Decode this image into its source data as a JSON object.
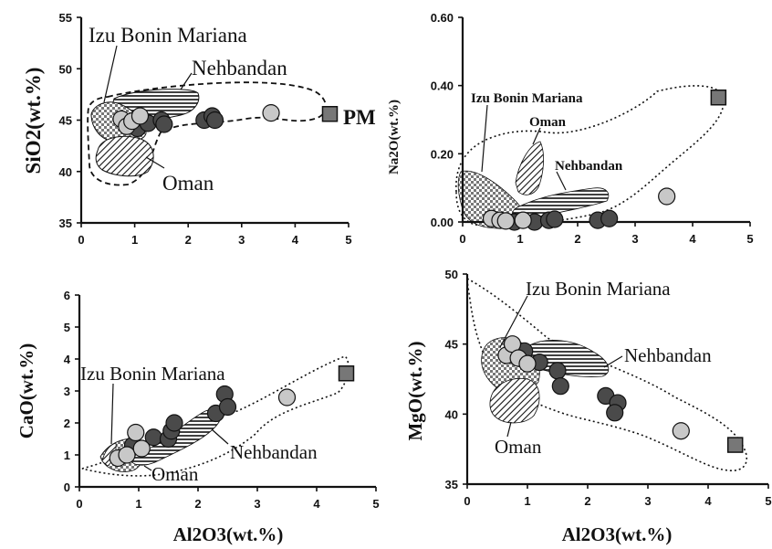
{
  "chart_data": [
    {
      "type": "scatter",
      "xlabel": "",
      "ylabel": "SiO2(wt.%)",
      "xlim": [
        0,
        5
      ],
      "ylim": [
        35,
        55
      ],
      "xticks": [
        "0",
        "1",
        "2",
        "3",
        "4",
        "5"
      ],
      "yticks": [
        "35",
        "40",
        "45",
        "50",
        "55"
      ],
      "annotations": [
        "Izu Bonin Mariana",
        "Nehbandan",
        "Oman",
        "PM"
      ],
      "series": [
        {
          "name": "dark",
          "color": "#4a4a4a",
          "points": [
            [
              1.0,
              44.6
            ],
            [
              1.05,
              44.2
            ],
            [
              1.25,
              44.7
            ],
            [
              1.5,
              45.0
            ],
            [
              1.55,
              44.6
            ],
            [
              2.3,
              45.0
            ],
            [
              2.45,
              45.4
            ],
            [
              2.5,
              45.0
            ]
          ]
        },
        {
          "name": "light",
          "color": "#c8c8c8",
          "points": [
            [
              0.75,
              45.1
            ],
            [
              0.85,
              44.4
            ],
            [
              0.95,
              44.9
            ],
            [
              1.1,
              45.4
            ],
            [
              3.55,
              45.7
            ]
          ]
        },
        {
          "name": "PM",
          "color": "#777777",
          "marker": "square",
          "points": [
            [
              4.65,
              45.6
            ]
          ]
        }
      ]
    },
    {
      "type": "scatter",
      "xlabel": "",
      "ylabel": "Na2O(wt.%)",
      "xlim": [
        0,
        5
      ],
      "ylim": [
        0,
        0.6
      ],
      "xticks": [
        "0",
        "1",
        "2",
        "3",
        "4",
        "5"
      ],
      "yticks": [
        "0.00",
        "0.20",
        "0.40",
        "0.60"
      ],
      "annotations": [
        "Izu Bonin Mariana",
        "Oman",
        "Nehbandan"
      ],
      "series": [
        {
          "name": "dark",
          "color": "#4a4a4a",
          "points": [
            [
              0.9,
              0.0
            ],
            [
              1.25,
              0.0
            ],
            [
              1.5,
              0.005
            ],
            [
              1.6,
              0.008
            ],
            [
              2.35,
              0.005
            ],
            [
              2.55,
              0.01
            ]
          ]
        },
        {
          "name": "light",
          "color": "#c8c8c8",
          "points": [
            [
              0.5,
              0.01
            ],
            [
              0.65,
              0.005
            ],
            [
              0.75,
              0.003
            ],
            [
              1.05,
              0.005
            ],
            [
              3.55,
              0.075
            ]
          ]
        },
        {
          "name": "PM",
          "color": "#777777",
          "marker": "square",
          "points": [
            [
              4.45,
              0.365
            ]
          ]
        }
      ]
    },
    {
      "type": "scatter",
      "xlabel": "Al2O3(wt.%)",
      "ylabel": "CaO(wt.%)",
      "xlim": [
        0,
        5
      ],
      "ylim": [
        0,
        6
      ],
      "xticks": [
        "0",
        "1",
        "2",
        "3",
        "4",
        "5"
      ],
      "yticks": [
        "0",
        "1",
        "2",
        "3",
        "4",
        "5",
        "6"
      ],
      "annotations": [
        "Izu Bonin Mariana",
        "Nehbandan",
        "Oman"
      ],
      "series": [
        {
          "name": "dark",
          "color": "#4a4a4a",
          "points": [
            [
              0.9,
              1.3
            ],
            [
              1.25,
              1.55
            ],
            [
              1.5,
              1.5
            ],
            [
              1.55,
              1.75
            ],
            [
              1.6,
              2.0
            ],
            [
              2.3,
              2.3
            ],
            [
              2.45,
              2.9
            ],
            [
              2.5,
              2.5
            ]
          ]
        },
        {
          "name": "light",
          "color": "#c8c8c8",
          "points": [
            [
              0.65,
              0.9
            ],
            [
              0.8,
              1.0
            ],
            [
              0.95,
              1.7
            ],
            [
              1.05,
              1.2
            ],
            [
              3.5,
              2.8
            ]
          ]
        },
        {
          "name": "PM",
          "color": "#777777",
          "marker": "square",
          "points": [
            [
              4.5,
              3.55
            ]
          ]
        }
      ]
    },
    {
      "type": "scatter",
      "xlabel": "Al2O3(wt.%)",
      "ylabel": "MgO(wt.%)",
      "xlim": [
        0,
        5
      ],
      "ylim": [
        35,
        50
      ],
      "xticks": [
        "0",
        "1",
        "2",
        "3",
        "4",
        "5"
      ],
      "yticks": [
        "35",
        "40",
        "45",
        "50"
      ],
      "annotations": [
        "Izu Bonin Mariana",
        "Nehbandan",
        "Oman"
      ],
      "series": [
        {
          "name": "dark",
          "color": "#4a4a4a",
          "points": [
            [
              0.95,
              44.5
            ],
            [
              1.2,
              43.7
            ],
            [
              1.5,
              43.1
            ],
            [
              1.55,
              42.0
            ],
            [
              2.3,
              41.3
            ],
            [
              2.5,
              40.8
            ],
            [
              2.45,
              40.1
            ]
          ]
        },
        {
          "name": "light",
          "color": "#c8c8c8",
          "points": [
            [
              0.65,
              44.2
            ],
            [
              0.75,
              45.0
            ],
            [
              0.85,
              44.0
            ],
            [
              1.0,
              43.6
            ],
            [
              3.55,
              38.8
            ]
          ]
        },
        {
          "name": "PM",
          "color": "#777777",
          "marker": "square",
          "points": [
            [
              4.45,
              37.8
            ]
          ]
        }
      ]
    }
  ]
}
